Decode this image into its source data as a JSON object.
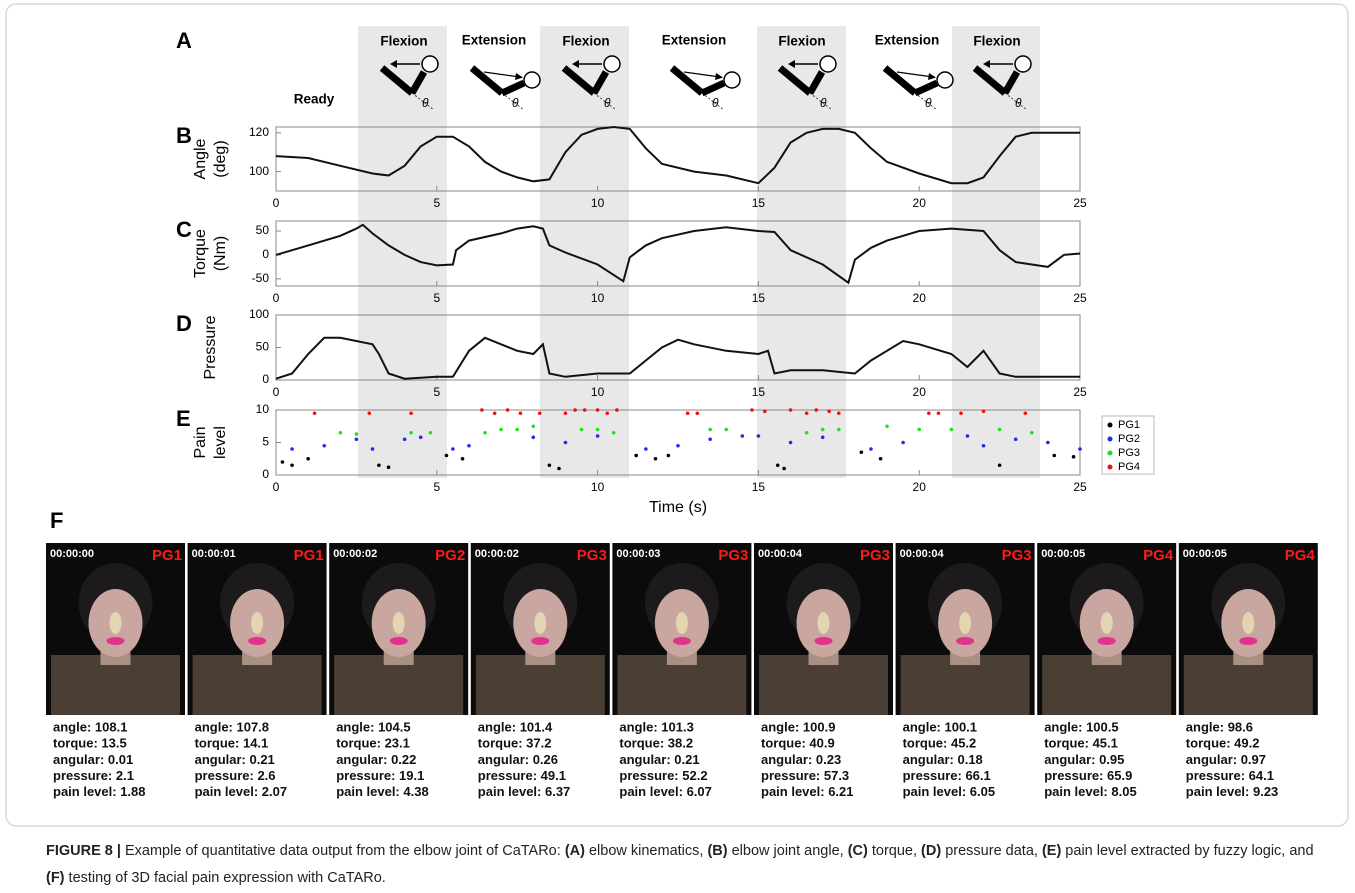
{
  "panel_a": {
    "label": "A",
    "angle_symbol": "θ",
    "phases": [
      "Ready",
      "Flexion",
      "Extension",
      "Flexion",
      "Extension",
      "Flexion",
      "Extension",
      "Flexion"
    ]
  },
  "chart_data": [
    {
      "type": "line",
      "panel": "B",
      "ylabel": [
        "Angle",
        "(deg)"
      ],
      "color": "#111111",
      "x": [
        0,
        1,
        2,
        3,
        3.5,
        4,
        4.5,
        5,
        5.5,
        6,
        6.5,
        7,
        7.5,
        8,
        8.5,
        9,
        9.5,
        10,
        10.5,
        11,
        11.5,
        12,
        13,
        14,
        15,
        15.5,
        16,
        16.5,
        17,
        17.5,
        18,
        18.5,
        19,
        20,
        21,
        21.5,
        22,
        22.5,
        23,
        23.5,
        24,
        25
      ],
      "values": [
        108,
        107,
        103,
        99,
        98,
        103,
        113,
        118,
        118,
        113,
        105,
        100,
        97,
        95,
        96,
        110,
        119,
        122,
        123,
        122,
        112,
        104,
        100,
        98,
        94,
        102,
        115,
        120,
        122,
        122,
        120,
        112,
        105,
        99,
        94,
        94,
        97,
        108,
        118,
        120,
        120,
        120
      ],
      "xlim": [
        0,
        25
      ],
      "xticks": [
        0,
        5,
        10,
        15,
        20,
        25
      ],
      "ylim": [
        90,
        123
      ],
      "yticks": [
        100,
        120
      ]
    },
    {
      "type": "line",
      "panel": "C",
      "ylabel": [
        "Torque",
        "(Nm)"
      ],
      "color": "#111111",
      "x": [
        0,
        1,
        2,
        2.5,
        2.7,
        3,
        3.5,
        4,
        4.5,
        5,
        5.5,
        5.6,
        6,
        7,
        7.5,
        8,
        8.3,
        8.5,
        9,
        10,
        10.8,
        11,
        11.5,
        12,
        13,
        14,
        15,
        15.5,
        16,
        17,
        17.8,
        18,
        18.5,
        19,
        20,
        21,
        22,
        22.5,
        23,
        24,
        24.5,
        25
      ],
      "values": [
        0,
        20,
        40,
        55,
        63,
        45,
        20,
        0,
        -15,
        -22,
        -20,
        10,
        30,
        45,
        55,
        60,
        55,
        20,
        5,
        -20,
        -55,
        -5,
        20,
        35,
        50,
        58,
        50,
        48,
        10,
        -20,
        -58,
        -10,
        15,
        30,
        50,
        55,
        50,
        10,
        -15,
        -25,
        0,
        3
      ],
      "xlim": [
        0,
        25
      ],
      "xticks": [
        0,
        5,
        10,
        15,
        20,
        25
      ],
      "ylim": [
        -65,
        71
      ],
      "yticks": [
        -50,
        0,
        50
      ]
    },
    {
      "type": "line",
      "panel": "D",
      "ylabel": [
        "Pressure"
      ],
      "color": "#111111",
      "x": [
        0,
        0.5,
        1,
        1.5,
        2,
        3,
        3.2,
        3.5,
        4,
        5,
        5.5,
        6,
        6.5,
        7,
        7.5,
        8,
        8.3,
        8.5,
        9,
        10,
        11,
        11.5,
        12,
        12.5,
        13,
        14,
        15,
        15.3,
        15.5,
        16,
        17,
        18,
        18.5,
        19,
        19.5,
        20,
        21,
        21.5,
        22,
        22.5,
        23,
        24,
        25
      ],
      "values": [
        2,
        10,
        40,
        65,
        65,
        55,
        40,
        10,
        2,
        5,
        5,
        45,
        65,
        55,
        45,
        40,
        55,
        10,
        5,
        10,
        10,
        30,
        50,
        62,
        55,
        45,
        40,
        45,
        10,
        15,
        15,
        10,
        30,
        45,
        60,
        55,
        40,
        20,
        45,
        10,
        5,
        5,
        5
      ],
      "xlim": [
        0,
        25
      ],
      "xticks": [
        0,
        5,
        10,
        15,
        20,
        25
      ],
      "ylim": [
        0,
        100
      ],
      "yticks": [
        0,
        50,
        100
      ]
    },
    {
      "type": "scatter",
      "panel": "E",
      "ylabel": [
        "Pain",
        "level"
      ],
      "xlabel": "Time (s)",
      "xlim": [
        0,
        25
      ],
      "xticks": [
        0,
        5,
        10,
        15,
        20,
        25
      ],
      "ylim": [
        0,
        10
      ],
      "yticks": [
        0,
        5,
        10
      ],
      "series": [
        {
          "name": "PG1",
          "color": "#000000",
          "x": [
            0.2,
            0.5,
            1,
            3.2,
            3.5,
            5.3,
            5.8,
            8.5,
            8.8,
            11.2,
            11.8,
            12.2,
            15.6,
            15.8,
            18.2,
            18.8,
            22.5,
            24.2,
            24.8
          ],
          "values": [
            2,
            1.5,
            2.5,
            1.5,
            1.2,
            3,
            2.5,
            1.5,
            1,
            3,
            2.5,
            3,
            1.5,
            1,
            3.5,
            2.5,
            1.5,
            3,
            2.8
          ]
        },
        {
          "name": "PG2",
          "color": "#1f2ee6",
          "x": [
            0.5,
            1.5,
            2.5,
            3,
            4,
            4.5,
            5.5,
            6,
            8,
            9,
            10,
            11.5,
            12.5,
            13.5,
            14.5,
            15,
            16,
            17,
            18.5,
            19.5,
            21.5,
            22,
            23,
            24,
            25
          ],
          "values": [
            4,
            4.5,
            5.5,
            4,
            5.5,
            5.8,
            4,
            4.5,
            5.8,
            5,
            6,
            4,
            4.5,
            5.5,
            6,
            6,
            5,
            5.8,
            4,
            5,
            6,
            4.5,
            5.5,
            5,
            4
          ]
        },
        {
          "name": "PG3",
          "color": "#22dd22",
          "x": [
            2,
            2.5,
            4.2,
            4.8,
            6.5,
            7,
            7.5,
            8,
            9.5,
            10,
            10.5,
            13.5,
            14,
            16.5,
            17,
            17.5,
            19,
            20,
            21,
            22.5,
            23.5
          ],
          "values": [
            6.5,
            6.3,
            6.5,
            6.5,
            6.5,
            7,
            7,
            7.5,
            7,
            7,
            6.5,
            7,
            7,
            6.5,
            7,
            7,
            7.5,
            7,
            7,
            7,
            6.5
          ]
        },
        {
          "name": "PG4",
          "color": "#ee1111",
          "x": [
            1.2,
            2.9,
            4.2,
            6.4,
            6.8,
            7.2,
            7.6,
            8.2,
            9,
            9.3,
            9.6,
            10,
            10.3,
            10.6,
            12.8,
            13.1,
            14.8,
            15.2,
            16,
            16.5,
            16.8,
            17.2,
            17.5,
            20.3,
            20.6,
            21.3,
            22,
            23.3
          ],
          "values": [
            9.5,
            9.5,
            9.5,
            10,
            9.5,
            10,
            9.5,
            9.5,
            9.5,
            10,
            10,
            10,
            9.5,
            10,
            9.5,
            9.5,
            10,
            9.8,
            10,
            9.5,
            10,
            9.8,
            9.5,
            9.5,
            9.5,
            9.5,
            9.8,
            9.5
          ]
        }
      ]
    }
  ],
  "panel_f": {
    "label": "F",
    "frames": [
      {
        "time": "00:00:00",
        "group": "PG1",
        "stats": [
          "angle: 108.1",
          "torque: 13.5",
          "angular: 0.01",
          "pressure: 2.1",
          "pain level: 1.88"
        ]
      },
      {
        "time": "00:00:01",
        "group": "PG1",
        "stats": [
          "angle: 107.8",
          "torque: 14.1",
          "angular: 0.21",
          "pressure: 2.6",
          "pain level: 2.07"
        ]
      },
      {
        "time": "00:00:02",
        "group": "PG2",
        "stats": [
          "angle: 104.5",
          "torque: 23.1",
          "angular: 0.22",
          "pressure: 19.1",
          "pain level: 4.38"
        ]
      },
      {
        "time": "00:00:02",
        "group": "PG3",
        "stats": [
          "angle: 101.4",
          "torque: 37.2",
          "angular: 0.26",
          "pressure: 49.1",
          "pain level: 6.37"
        ]
      },
      {
        "time": "00:00:03",
        "group": "PG3",
        "stats": [
          "angle: 101.3",
          "torque: 38.2",
          "angular: 0.21",
          "pressure: 52.2",
          "pain level: 6.07"
        ]
      },
      {
        "time": "00:00:04",
        "group": "PG3",
        "stats": [
          "angle: 100.9",
          "torque: 40.9",
          "angular: 0.23",
          "pressure: 57.3",
          "pain level: 6.21"
        ]
      },
      {
        "time": "00:00:04",
        "group": "PG3",
        "stats": [
          "angle: 100.1",
          "torque: 45.2",
          "angular: 0.18",
          "pressure: 66.1",
          "pain level: 6.05"
        ]
      },
      {
        "time": "00:00:05",
        "group": "PG4",
        "stats": [
          "angle: 100.5",
          "torque: 45.1",
          "angular: 0.95",
          "pressure: 65.9",
          "pain level: 8.05"
        ]
      },
      {
        "time": "00:00:05",
        "group": "PG4",
        "stats": [
          "angle: 98.6",
          "torque: 49.2",
          "angular: 0.97",
          "pressure: 64.1",
          "pain level: 9.23"
        ]
      }
    ]
  },
  "caption": [
    {
      "text": "FIGURE 8 |",
      "bold": true
    },
    {
      "text": " Example of quantitative data output from the elbow joint of CaTARo: ",
      "bold": false
    },
    {
      "text": "(A)",
      "bold": true
    },
    {
      "text": " elbow kinematics, ",
      "bold": false
    },
    {
      "text": "(B)",
      "bold": true
    },
    {
      "text": " elbow joint angle, ",
      "bold": false
    },
    {
      "text": "(C)",
      "bold": true
    },
    {
      "text": " torque, ",
      "bold": false
    },
    {
      "text": "(D)",
      "bold": true
    },
    {
      "text": " pressure data, ",
      "bold": false
    },
    {
      "text": "(E)",
      "bold": true
    },
    {
      "text": " pain level extracted by fuzzy logic, and ",
      "bold": false
    },
    {
      "text": "(F)",
      "bold": true
    },
    {
      "text": " testing of 3D facial pain expression with CaTARo.",
      "bold": false
    }
  ]
}
